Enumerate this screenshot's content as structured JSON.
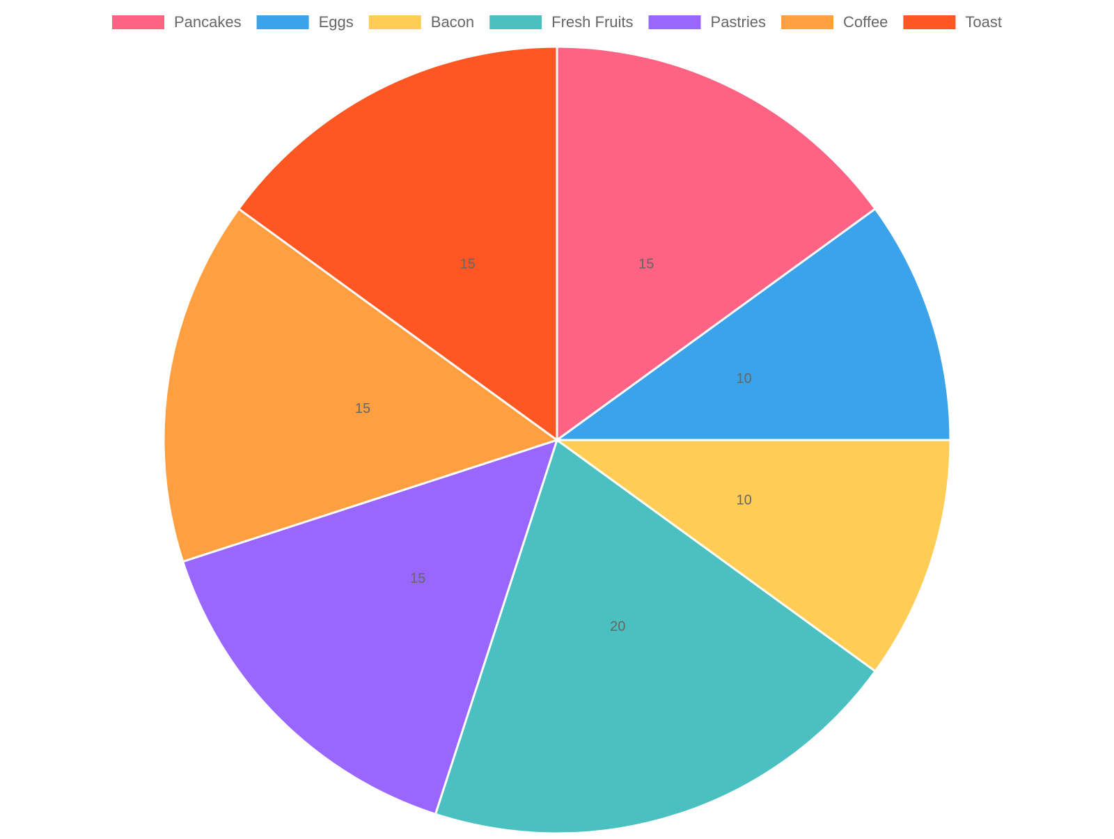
{
  "chart_data": {
    "type": "pie",
    "categories": [
      "Pancakes",
      "Eggs",
      "Bacon",
      "Fresh Fruits",
      "Pastries",
      "Coffee",
      "Toast"
    ],
    "values": [
      15,
      10,
      10,
      20,
      15,
      15,
      15
    ],
    "colors": [
      "#ff6384",
      "#3aa3ea",
      "#ffcd56",
      "#4bc0c0",
      "#9966ff",
      "#ff9f40",
      "#ff5724"
    ],
    "legend": "top"
  }
}
